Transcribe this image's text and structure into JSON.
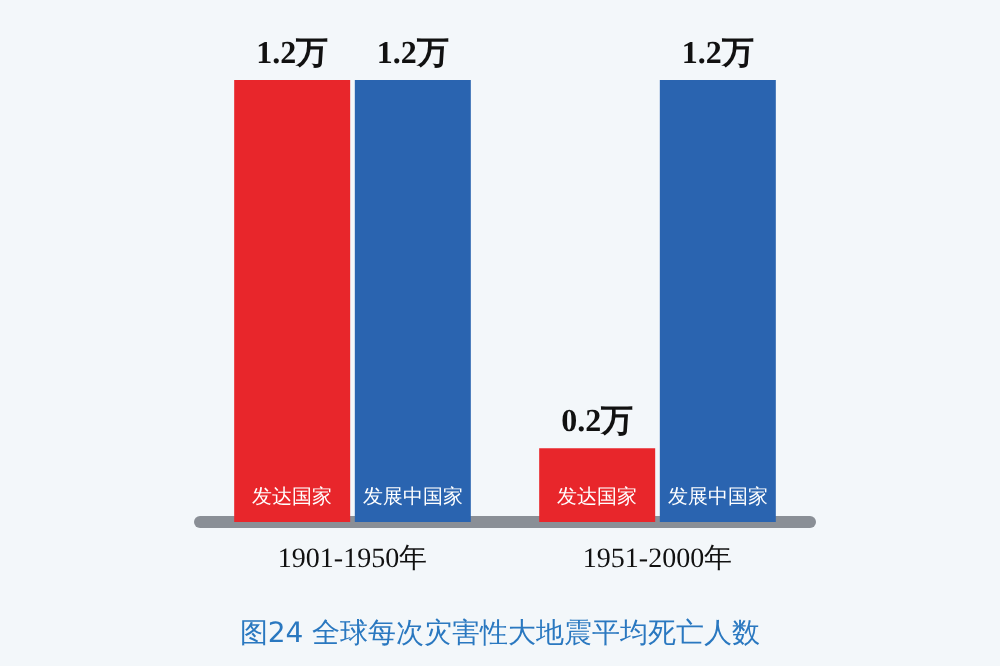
{
  "chart_data": {
    "type": "bar",
    "title": "图24 全球每次灾害性大地震平均死亡人数",
    "categories": [
      "1901-1950年",
      "1951-2000年"
    ],
    "series": [
      {
        "name": "发达国家",
        "color": "#e8262b",
        "values": [
          1.2,
          0.2
        ],
        "value_labels": [
          "1.2万",
          "0.2万"
        ]
      },
      {
        "name": "发展中国家",
        "color": "#2a64b0",
        "values": [
          1.2,
          1.2
        ],
        "value_labels": [
          "1.2万",
          "1.2万"
        ]
      }
    ],
    "legend": false,
    "grid": false
  }
}
